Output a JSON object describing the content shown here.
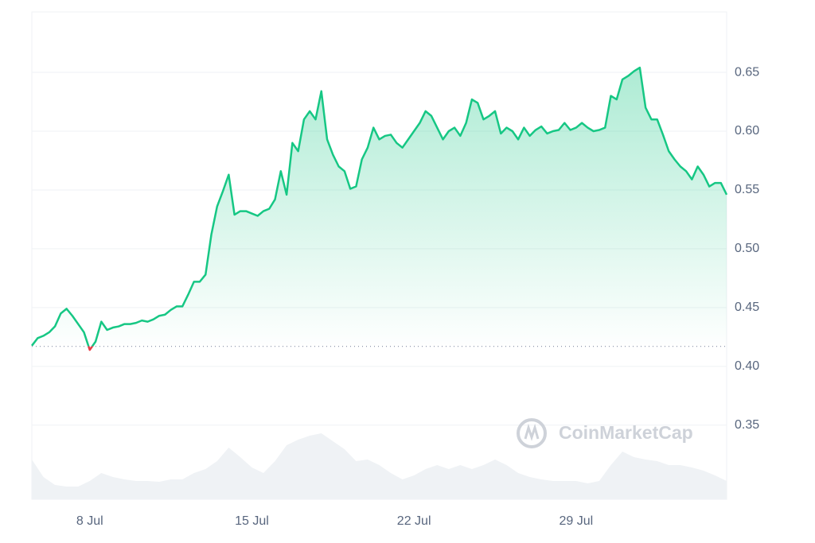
{
  "chart_data": {
    "type": "area-line",
    "watermark": "CoinMarketCap",
    "baseline": 0.417,
    "x": [
      5.5,
      5.75,
      6,
      6.25,
      6.5,
      6.75,
      7,
      7.25,
      7.5,
      7.75,
      8,
      8.25,
      8.5,
      8.75,
      9,
      9.25,
      9.5,
      9.75,
      10,
      10.25,
      10.5,
      10.75,
      11,
      11.25,
      11.5,
      11.75,
      12,
      12.25,
      12.5,
      12.75,
      13,
      13.25,
      13.5,
      13.75,
      14,
      14.25,
      14.5,
      14.75,
      15,
      15.25,
      15.5,
      15.75,
      16,
      16.25,
      16.5,
      16.75,
      17,
      17.25,
      17.5,
      17.75,
      18,
      18.25,
      18.5,
      18.75,
      19,
      19.25,
      19.5,
      19.75,
      20,
      20.25,
      20.5,
      20.75,
      21,
      21.25,
      21.5,
      21.75,
      22,
      22.25,
      22.5,
      22.75,
      23,
      23.25,
      23.5,
      23.75,
      24,
      24.25,
      24.5,
      24.75,
      25,
      25.25,
      25.5,
      25.75,
      26,
      26.25,
      26.5,
      26.75,
      27,
      27.25,
      27.5,
      27.75,
      28,
      28.25,
      28.5,
      28.75,
      29,
      29.25,
      29.5,
      29.75,
      30,
      30.25,
      30.5,
      30.75,
      31,
      31.25,
      31.5,
      31.75,
      32,
      32.25,
      32.5,
      32.75,
      33,
      33.25,
      33.5,
      33.75,
      34,
      34.25,
      34.5,
      34.75,
      35,
      35.25,
      35.5
    ],
    "series": [
      {
        "color": "#16c784",
        "below_color": "#ea3943",
        "values": [
          0.4176,
          0.424,
          0.426,
          0.429,
          0.434,
          0.445,
          0.449,
          0.443,
          0.436,
          0.429,
          0.414,
          0.421,
          0.438,
          0.431,
          0.433,
          0.434,
          0.436,
          0.436,
          0.437,
          0.439,
          0.438,
          0.44,
          0.443,
          0.444,
          0.448,
          0.451,
          0.451,
          0.461,
          0.472,
          0.472,
          0.478,
          0.512,
          0.536,
          0.549,
          0.563,
          0.529,
          0.532,
          0.532,
          0.53,
          0.528,
          0.532,
          0.534,
          0.542,
          0.566,
          0.546,
          0.59,
          0.583,
          0.61,
          0.617,
          0.61,
          0.634,
          0.593,
          0.58,
          0.57,
          0.566,
          0.551,
          0.553,
          0.576,
          0.586,
          0.603,
          0.593,
          0.596,
          0.597,
          0.59,
          0.586,
          0.593,
          0.6,
          0.607,
          0.617,
          0.613,
          0.603,
          0.593,
          0.6,
          0.603,
          0.596,
          0.607,
          0.627,
          0.624,
          0.61,
          0.613,
          0.617,
          0.598,
          0.603,
          0.6,
          0.593,
          0.603,
          0.596,
          0.601,
          0.604,
          0.598,
          0.6,
          0.601,
          0.607,
          0.601,
          0.603,
          0.607,
          0.603,
          0.6,
          0.601,
          0.603,
          0.63,
          0.627,
          0.644,
          0.647,
          0.651,
          0.654,
          0.62,
          0.61,
          0.61,
          0.597,
          0.583,
          0.576,
          0.57,
          0.566,
          0.559,
          0.57,
          0.563,
          0.553,
          0.556,
          0.556,
          0.546
        ]
      }
    ],
    "volume": {
      "color": "#eff2f5",
      "lim": [
        0,
        100
      ],
      "x": [
        5.5,
        6,
        6.5,
        7,
        7.5,
        8,
        8.5,
        9,
        9.5,
        10,
        10.5,
        11,
        11.5,
        12,
        12.5,
        13,
        13.5,
        14,
        14.5,
        15,
        15.5,
        16,
        16.5,
        17,
        17.5,
        18,
        18.5,
        19,
        19.5,
        20,
        20.5,
        21,
        21.5,
        22,
        22.5,
        23,
        23.5,
        24,
        24.5,
        25,
        25.5,
        26,
        26.5,
        27,
        27.5,
        28,
        28.5,
        29,
        29.5,
        30,
        30.5,
        31,
        31.5,
        32,
        32.5,
        33,
        33.5,
        34,
        34.5,
        35,
        35.5
      ],
      "values": [
        50,
        28,
        18,
        16,
        16,
        23,
        33,
        28,
        25,
        23,
        23,
        22,
        25,
        25,
        33,
        38,
        48,
        65,
        53,
        40,
        33,
        48,
        68,
        75,
        80,
        83,
        73,
        63,
        48,
        50,
        43,
        33,
        25,
        30,
        38,
        43,
        38,
        43,
        38,
        43,
        50,
        43,
        33,
        28,
        25,
        23,
        23,
        23,
        20,
        23,
        43,
        60,
        53,
        50,
        48,
        43,
        43,
        40,
        36,
        30,
        23
      ]
    },
    "xlim": [
      5.5,
      35.5
    ],
    "xticks": [
      {
        "value": 8,
        "label": "8 Jul"
      },
      {
        "value": 15,
        "label": "15 Jul"
      },
      {
        "value": 22,
        "label": "22 Jul"
      },
      {
        "value": 29,
        "label": "29 Jul"
      }
    ],
    "ylim": [
      0.287,
      0.7014
    ],
    "yticks": [
      0.35,
      {
        "value": 0.4,
        "label": "0.40"
      },
      0.45,
      {
        "value": 0.5,
        "label": "0.50"
      },
      0.55,
      {
        "value": 0.6,
        "label": "0.60"
      },
      0.65
    ],
    "grid": true
  }
}
